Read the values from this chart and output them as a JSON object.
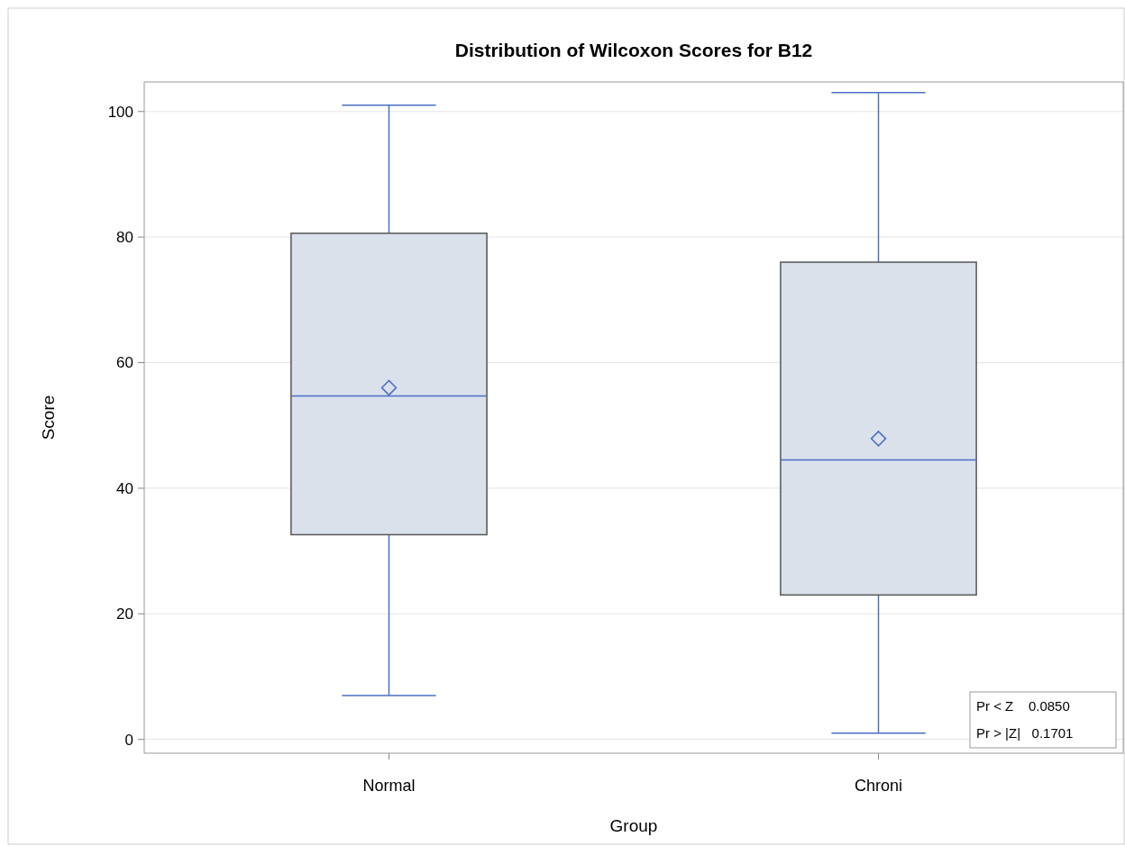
{
  "chart_data": {
    "type": "box",
    "title": "Distribution of Wilcoxon Scores for B12",
    "xlabel": "Group",
    "ylabel": "Score",
    "categories": [
      "Normal",
      "Chroni"
    ],
    "boxes": [
      {
        "low": 7,
        "q1": 32.6,
        "median": 54.7,
        "q3": 80.6,
        "high": 101,
        "mean": 56
      },
      {
        "low": 1,
        "q1": 23,
        "median": 44.5,
        "q3": 76,
        "high": 103,
        "mean": 47.9
      }
    ],
    "color": "#dae1eb",
    "ylim": [
      -2.2,
      104.7
    ],
    "yticks": [
      0,
      20,
      40,
      60,
      80,
      100
    ],
    "grid": "y",
    "annotations": [
      "Pr < Z    0.0850",
      "Pr > |Z|   0.1701"
    ]
  }
}
